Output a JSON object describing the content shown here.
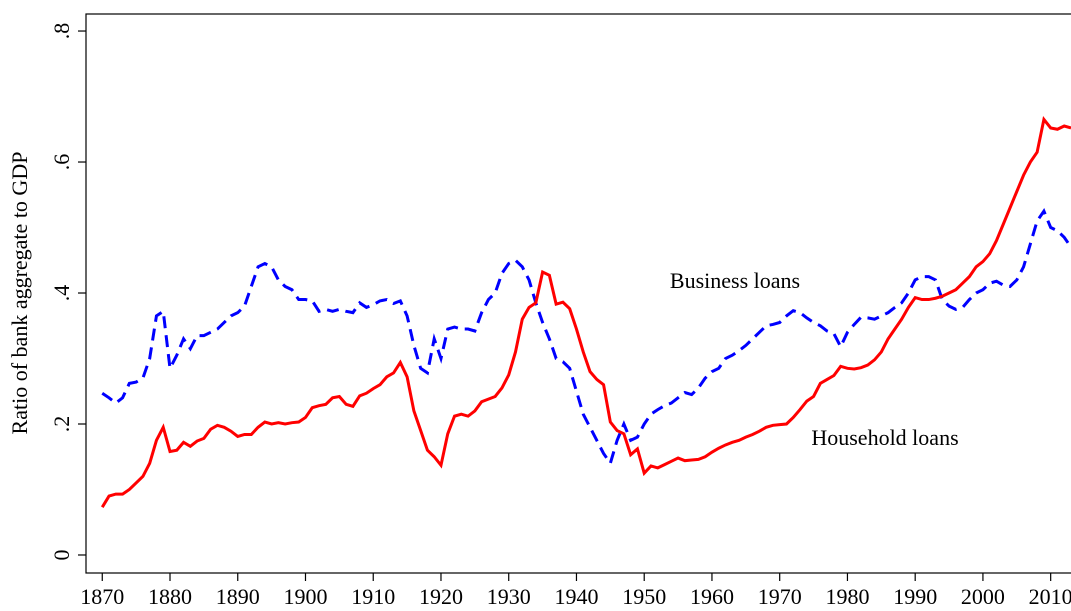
{
  "chart_data": {
    "type": "line",
    "y_label": "Ratio of bank aggregate to GDP",
    "annotations": [
      "Business loans",
      "Household loans"
    ],
    "x": [
      1870,
      1871,
      1872,
      1873,
      1874,
      1875,
      1876,
      1877,
      1878,
      1879,
      1880,
      1881,
      1882,
      1883,
      1884,
      1885,
      1886,
      1887,
      1888,
      1889,
      1890,
      1891,
      1892,
      1893,
      1894,
      1895,
      1896,
      1897,
      1898,
      1899,
      1900,
      1901,
      1902,
      1903,
      1904,
      1905,
      1906,
      1907,
      1908,
      1909,
      1910,
      1911,
      1912,
      1913,
      1914,
      1915,
      1916,
      1917,
      1918,
      1919,
      1920,
      1921,
      1922,
      1923,
      1924,
      1925,
      1926,
      1927,
      1928,
      1929,
      1930,
      1931,
      1932,
      1933,
      1934,
      1935,
      1936,
      1937,
      1938,
      1939,
      1940,
      1941,
      1942,
      1943,
      1944,
      1945,
      1946,
      1947,
      1948,
      1949,
      1950,
      1951,
      1952,
      1953,
      1954,
      1955,
      1956,
      1957,
      1958,
      1959,
      1960,
      1961,
      1962,
      1963,
      1964,
      1965,
      1966,
      1967,
      1968,
      1969,
      1970,
      1971,
      1972,
      1973,
      1974,
      1975,
      1976,
      1977,
      1978,
      1979,
      1980,
      1981,
      1982,
      1983,
      1984,
      1985,
      1986,
      1987,
      1988,
      1989,
      1990,
      1991,
      1992,
      1993,
      1994,
      1995,
      1996,
      1997,
      1998,
      1999,
      2000,
      2001,
      2002,
      2003,
      2004,
      2005,
      2006,
      2007,
      2008,
      2009,
      2010,
      2011,
      2012,
      2013
    ],
    "series": [
      {
        "name": "Business loans",
        "color": "#0000ff",
        "line_style": "dashed",
        "values": [
          0.247,
          0.24,
          0.232,
          0.24,
          0.262,
          0.264,
          0.27,
          0.3,
          0.365,
          0.372,
          0.285,
          0.305,
          0.33,
          0.315,
          0.335,
          0.335,
          0.34,
          0.345,
          0.355,
          0.365,
          0.37,
          0.38,
          0.41,
          0.44,
          0.445,
          0.44,
          0.42,
          0.41,
          0.405,
          0.39,
          0.39,
          0.388,
          0.372,
          0.375,
          0.372,
          0.375,
          0.372,
          0.37,
          0.385,
          0.378,
          0.382,
          0.388,
          0.39,
          0.384,
          0.388,
          0.365,
          0.32,
          0.285,
          0.278,
          0.33,
          0.3,
          0.345,
          0.348,
          0.345,
          0.345,
          0.342,
          0.37,
          0.39,
          0.4,
          0.43,
          0.445,
          0.45,
          0.44,
          0.42,
          0.385,
          0.355,
          0.33,
          0.3,
          0.295,
          0.285,
          0.25,
          0.215,
          0.195,
          0.175,
          0.155,
          0.14,
          0.175,
          0.2,
          0.175,
          0.18,
          0.2,
          0.215,
          0.222,
          0.228,
          0.232,
          0.24,
          0.248,
          0.245,
          0.255,
          0.27,
          0.28,
          0.285,
          0.3,
          0.305,
          0.312,
          0.32,
          0.33,
          0.34,
          0.35,
          0.352,
          0.355,
          0.365,
          0.373,
          0.37,
          0.362,
          0.355,
          0.35,
          0.342,
          0.338,
          0.318,
          0.34,
          0.352,
          0.363,
          0.362,
          0.36,
          0.365,
          0.37,
          0.378,
          0.385,
          0.4,
          0.42,
          0.425,
          0.425,
          0.42,
          0.39,
          0.38,
          0.375,
          0.378,
          0.39,
          0.4,
          0.405,
          0.415,
          0.418,
          0.412,
          0.41,
          0.42,
          0.44,
          0.475,
          0.51,
          0.525,
          0.5,
          0.495,
          0.485,
          0.47
        ]
      },
      {
        "name": "Household loans",
        "color": "#ff0000",
        "line_style": "solid",
        "values": [
          0.073,
          0.09,
          0.093,
          0.093,
          0.1,
          0.11,
          0.12,
          0.14,
          0.175,
          0.195,
          0.158,
          0.16,
          0.172,
          0.166,
          0.174,
          0.178,
          0.192,
          0.198,
          0.195,
          0.189,
          0.181,
          0.184,
          0.184,
          0.195,
          0.203,
          0.2,
          0.202,
          0.2,
          0.202,
          0.203,
          0.21,
          0.225,
          0.228,
          0.23,
          0.24,
          0.242,
          0.23,
          0.227,
          0.243,
          0.247,
          0.254,
          0.26,
          0.272,
          0.278,
          0.294,
          0.272,
          0.22,
          0.19,
          0.16,
          0.15,
          0.137,
          0.185,
          0.212,
          0.215,
          0.212,
          0.22,
          0.234,
          0.238,
          0.242,
          0.255,
          0.275,
          0.31,
          0.36,
          0.378,
          0.385,
          0.432,
          0.427,
          0.383,
          0.386,
          0.376,
          0.345,
          0.31,
          0.28,
          0.268,
          0.26,
          0.203,
          0.19,
          0.185,
          0.153,
          0.162,
          0.125,
          0.136,
          0.133,
          0.138,
          0.143,
          0.148,
          0.144,
          0.145,
          0.146,
          0.15,
          0.157,
          0.163,
          0.168,
          0.172,
          0.175,
          0.18,
          0.184,
          0.189,
          0.195,
          0.198,
          0.199,
          0.2,
          0.21,
          0.222,
          0.235,
          0.242,
          0.262,
          0.268,
          0.274,
          0.288,
          0.285,
          0.284,
          0.286,
          0.29,
          0.298,
          0.31,
          0.33,
          0.345,
          0.36,
          0.378,
          0.393,
          0.39,
          0.39,
          0.392,
          0.395,
          0.4,
          0.405,
          0.415,
          0.425,
          0.44,
          0.448,
          0.46,
          0.48,
          0.505,
          0.53,
          0.555,
          0.58,
          0.6,
          0.615,
          0.665,
          0.652,
          0.65,
          0.655,
          0.652
        ]
      }
    ],
    "xlim": [
      1867.6,
      2013
    ],
    "xticks": [
      1870,
      1880,
      1890,
      1900,
      1910,
      1920,
      1930,
      1940,
      1950,
      1960,
      1970,
      1980,
      1990,
      2000,
      2010
    ],
    "ylim": [
      -0.0275,
      0.826
    ],
    "yticks": [
      {
        "value": 0,
        "label": "0"
      },
      {
        "value": 0.2,
        "label": ".2"
      },
      {
        "value": 0.4,
        "label": ".4"
      },
      {
        "value": 0.6,
        "label": ".6"
      },
      {
        "value": 0.8,
        "label": ".8"
      }
    ],
    "grid": false
  }
}
